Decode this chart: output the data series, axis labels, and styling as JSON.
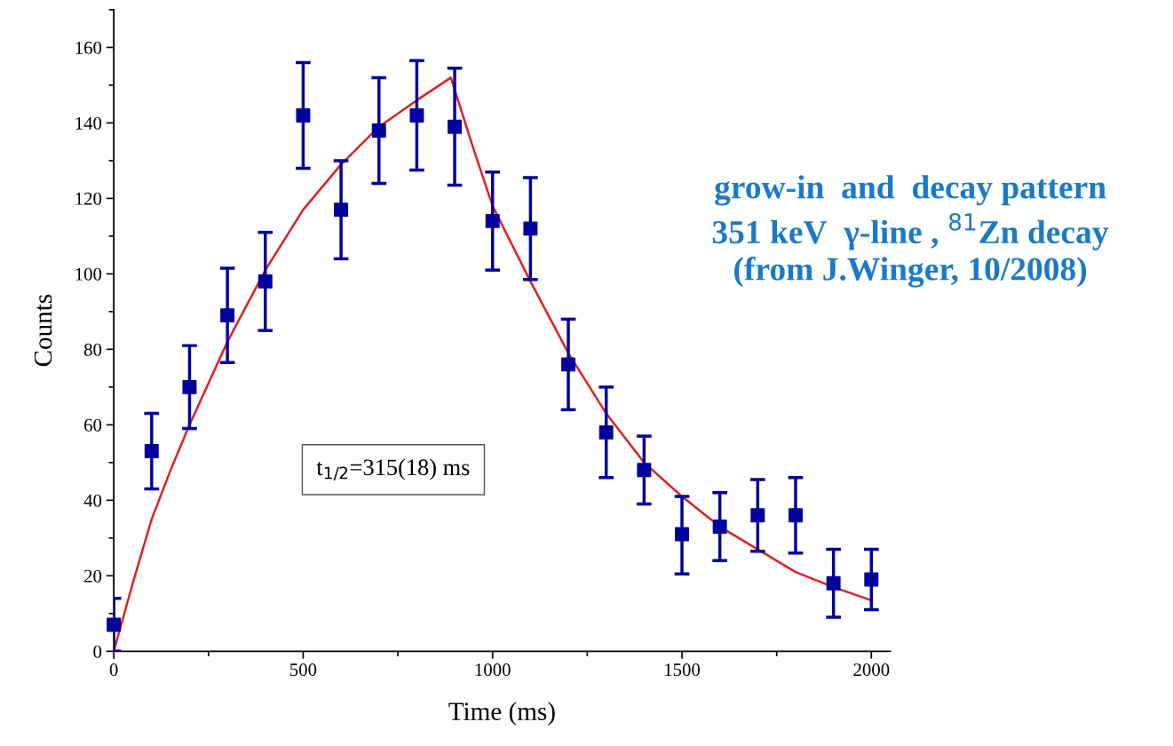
{
  "chart_data": {
    "type": "scatter",
    "xlabel": "Time (ms)",
    "ylabel": "Counts",
    "xlim": [
      0,
      2050
    ],
    "ylim": [
      0,
      170
    ],
    "xticks": [
      0,
      500,
      1000,
      1500,
      2000
    ],
    "yticks": [
      0,
      20,
      40,
      60,
      80,
      100,
      120,
      140,
      160
    ],
    "grid": false,
    "legend": false,
    "series": [
      {
        "color": "#00009c",
        "marker": "square",
        "x": [
          0,
          100,
          200,
          300,
          400,
          500,
          600,
          700,
          800,
          900,
          1000,
          1100,
          1200,
          1300,
          1400,
          1500,
          1600,
          1700,
          1800,
          1900,
          2000
        ],
        "values": [
          7,
          53,
          70,
          89,
          98,
          142,
          117,
          138,
          142,
          139,
          114,
          112,
          76,
          58,
          48,
          31,
          33,
          36,
          36,
          18,
          19
        ],
        "errors": [
          [
            0,
            14
          ],
          [
            43,
            63
          ],
          [
            59,
            81
          ],
          [
            76.5,
            101.5
          ],
          [
            85,
            111
          ],
          [
            128,
            156
          ],
          [
            104,
            130
          ],
          [
            124,
            152
          ],
          [
            127.5,
            156.5
          ],
          [
            123.5,
            154.5
          ],
          [
            101,
            127
          ],
          [
            98.5,
            125.5
          ],
          [
            64,
            88
          ],
          [
            46,
            70
          ],
          [
            39,
            57
          ],
          [
            20.5,
            41
          ],
          [
            24,
            42
          ],
          [
            26.5,
            45.5
          ],
          [
            26,
            46
          ],
          [
            9,
            27
          ],
          [
            11,
            27
          ]
        ]
      },
      {
        "type": "line",
        "color": "#e02020",
        "marker": "none",
        "line_style": "solid",
        "x": [
          0,
          50,
          100,
          150,
          200,
          300,
          400,
          500,
          600,
          700,
          800,
          890,
          950,
          1000,
          1100,
          1200,
          1300,
          1400,
          1500,
          1600,
          1700,
          1800,
          1900,
          2000
        ],
        "values": [
          0,
          18,
          35,
          48,
          60,
          82,
          101,
          117,
          129,
          139,
          146,
          152,
          133,
          118,
          98,
          79,
          63,
          50,
          41,
          33,
          27,
          21,
          17,
          13.5
        ]
      }
    ],
    "annotations": [
      "t$_{1/2}$=315(18) ms",
      "grow-in  and  decay pattern\n351 keV  γ-line , $^{81}$Zn decay\n(from J.Winger, 10/2008)"
    ]
  }
}
